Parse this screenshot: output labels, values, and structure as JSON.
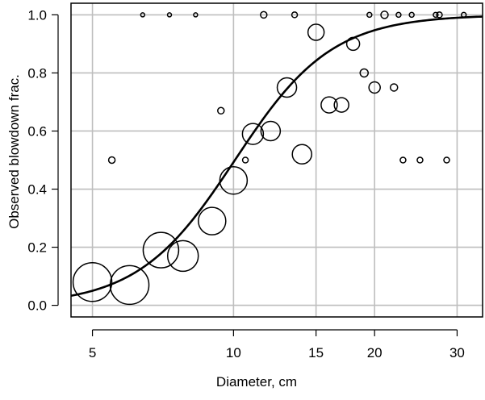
{
  "chart_data": {
    "type": "scatter",
    "title": "",
    "xlabel": "Diameter, cm",
    "ylabel": "Observed blowdown frac.",
    "x_scale": "log",
    "xlim": [
      4.5,
      34
    ],
    "ylim": [
      -0.04,
      1.04
    ],
    "x_ticks": [
      5,
      10,
      15,
      20,
      30
    ],
    "y_ticks": [
      0.0,
      0.2,
      0.4,
      0.6,
      0.8,
      1.0
    ],
    "x_tick_labels": [
      "5",
      "10",
      "15",
      "20",
      "30"
    ],
    "y_tick_labels": [
      "0.0",
      "0.2",
      "0.4",
      "0.6",
      "0.8",
      "1.0"
    ],
    "grid": true,
    "marker_size_encodes": "number of trees per diameter class",
    "points": [
      {
        "x": 5.0,
        "y": 0.08,
        "size": 24
      },
      {
        "x": 5.5,
        "y": 0.5,
        "size": 4
      },
      {
        "x": 6.0,
        "y": 0.07,
        "size": 24
      },
      {
        "x": 6.4,
        "y": 1.0,
        "size": 2.5
      },
      {
        "x": 7.0,
        "y": 0.19,
        "size": 22
      },
      {
        "x": 7.3,
        "y": 1.0,
        "size": 2.5
      },
      {
        "x": 7.8,
        "y": 0.17,
        "size": 19
      },
      {
        "x": 8.3,
        "y": 1.0,
        "size": 2.5
      },
      {
        "x": 9.0,
        "y": 0.29,
        "size": 17
      },
      {
        "x": 9.4,
        "y": 0.67,
        "size": 4
      },
      {
        "x": 10.0,
        "y": 0.43,
        "size": 17
      },
      {
        "x": 10.6,
        "y": 0.5,
        "size": 3.5
      },
      {
        "x": 11.0,
        "y": 0.59,
        "size": 13
      },
      {
        "x": 11.6,
        "y": 1.0,
        "size": 4
      },
      {
        "x": 12.0,
        "y": 0.6,
        "size": 12
      },
      {
        "x": 13.0,
        "y": 0.75,
        "size": 12
      },
      {
        "x": 13.5,
        "y": 1.0,
        "size": 3.5
      },
      {
        "x": 14.0,
        "y": 0.52,
        "size": 12
      },
      {
        "x": 15.0,
        "y": 0.94,
        "size": 10
      },
      {
        "x": 16.0,
        "y": 0.69,
        "size": 10
      },
      {
        "x": 17.0,
        "y": 0.69,
        "size": 9
      },
      {
        "x": 18.0,
        "y": 0.9,
        "size": 8
      },
      {
        "x": 19.0,
        "y": 0.8,
        "size": 5
      },
      {
        "x": 19.5,
        "y": 1.0,
        "size": 3
      },
      {
        "x": 20.0,
        "y": 0.75,
        "size": 7
      },
      {
        "x": 21.0,
        "y": 1.0,
        "size": 4.5
      },
      {
        "x": 22.0,
        "y": 0.75,
        "size": 4.5
      },
      {
        "x": 22.5,
        "y": 1.0,
        "size": 3
      },
      {
        "x": 23.0,
        "y": 0.5,
        "size": 3.5
      },
      {
        "x": 24.0,
        "y": 1.0,
        "size": 3
      },
      {
        "x": 25.0,
        "y": 0.5,
        "size": 3.5
      },
      {
        "x": 27.0,
        "y": 1.0,
        "size": 3
      },
      {
        "x": 27.5,
        "y": 1.0,
        "size": 3.5
      },
      {
        "x": 28.5,
        "y": 0.5,
        "size": 3.5
      },
      {
        "x": 31.0,
        "y": 1.0,
        "size": 3
      }
    ],
    "fitted_curve": {
      "type": "logistic in log(diameter)",
      "intercept": -9.7,
      "slope_log_diameter": 4.2,
      "x_range": [
        4.5,
        34
      ]
    }
  }
}
